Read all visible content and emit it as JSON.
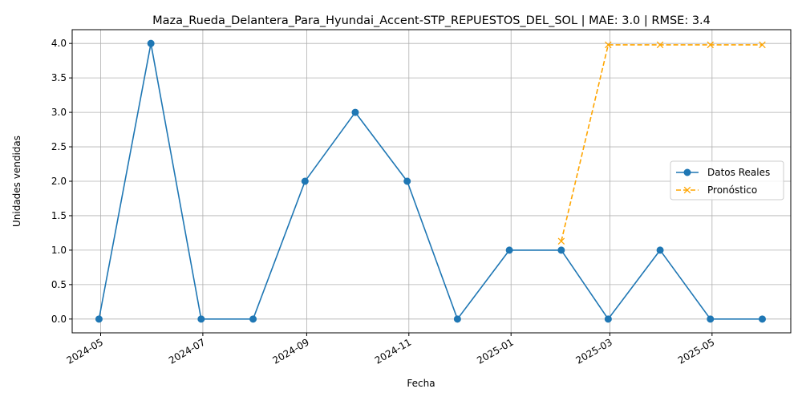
{
  "chart_data": {
    "type": "line",
    "title": "Maza_Rueda_Delantera_Para_Hyundai_Accent-STP_REPUESTOS_DEL_SOL | MAE: 3.0 | RMSE: 3.4",
    "xlabel": "Fecha",
    "ylabel": "Unidades vendidas",
    "ylim": [
      -0.2,
      4.2
    ],
    "xlim": [
      "2024-04-14",
      "2025-06-17"
    ],
    "grid": true,
    "legend_position": "center-right",
    "x_ticks": [
      "2024-05",
      "2024-07",
      "2024-09",
      "2024-11",
      "2025-01",
      "2025-03",
      "2025-05"
    ],
    "x_tick_dates": [
      "2024-05-01",
      "2024-07-01",
      "2024-09-01",
      "2024-11-01",
      "2025-01-01",
      "2025-03-01",
      "2025-05-01"
    ],
    "y_ticks": [
      "0.0",
      "0.5",
      "1.0",
      "1.5",
      "2.0",
      "2.5",
      "3.0",
      "3.5",
      "4.0"
    ],
    "series": [
      {
        "name": "Datos Reales",
        "color": "#1f77b4",
        "marker": "circle",
        "line_style": "solid",
        "points": [
          {
            "x": "2024-04-30",
            "y": 0
          },
          {
            "x": "2024-05-31",
            "y": 4
          },
          {
            "x": "2024-06-30",
            "y": 0
          },
          {
            "x": "2024-07-31",
            "y": 0
          },
          {
            "x": "2024-08-31",
            "y": 2
          },
          {
            "x": "2024-09-30",
            "y": 3
          },
          {
            "x": "2024-10-31",
            "y": 2
          },
          {
            "x": "2024-11-30",
            "y": 0
          },
          {
            "x": "2024-12-31",
            "y": 1
          },
          {
            "x": "2025-01-31",
            "y": 1
          },
          {
            "x": "2025-02-28",
            "y": 0
          },
          {
            "x": "2025-03-31",
            "y": 1
          },
          {
            "x": "2025-04-30",
            "y": 0
          },
          {
            "x": "2025-05-31",
            "y": 0
          }
        ]
      },
      {
        "name": "Pronóstico",
        "color": "#ffa500",
        "marker": "x",
        "line_style": "dashed",
        "points": [
          {
            "x": "2025-01-31",
            "y": 1.13
          },
          {
            "x": "2025-02-28",
            "y": 3.98
          },
          {
            "x": "2025-03-31",
            "y": 3.98
          },
          {
            "x": "2025-04-30",
            "y": 3.98
          },
          {
            "x": "2025-05-31",
            "y": 3.98
          }
        ]
      }
    ]
  }
}
